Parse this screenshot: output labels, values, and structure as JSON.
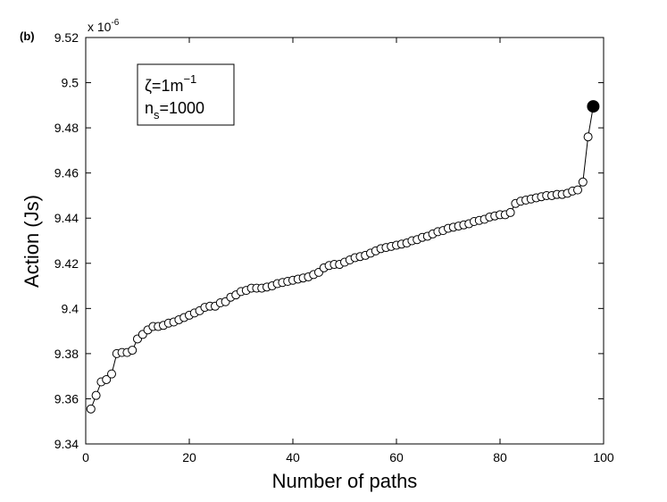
{
  "panel_label": "(b)",
  "chart_data": {
    "type": "line",
    "xlabel": "Number of paths",
    "ylabel": "Action (Js)",
    "y_multiplier": "x 10",
    "y_multiplier_exp": "-6",
    "xlim": [
      0,
      100
    ],
    "ylim": [
      9.34,
      9.52
    ],
    "x_ticks": [
      0,
      20,
      40,
      60,
      80,
      100
    ],
    "x_tick_labels": [
      "0",
      "20",
      "40",
      "60",
      "80",
      "100"
    ],
    "y_ticks": [
      9.34,
      9.36,
      9.38,
      9.4,
      9.42,
      9.44,
      9.46,
      9.48,
      9.5,
      9.52
    ],
    "y_tick_labels": [
      "9.34",
      "9.36",
      "9.38",
      "9.4",
      "9.42",
      "9.44",
      "9.46",
      "9.48",
      "9.5",
      "9.52"
    ],
    "grid": false,
    "annotation": {
      "line1": "ζ=1m",
      "line1_sup": "−1",
      "line2_main": "n",
      "line2_sub": "s",
      "line2_rest": "=1000"
    },
    "series": [
      {
        "x": [
          1,
          2,
          3,
          4,
          5,
          6,
          7,
          8,
          9,
          10,
          11,
          12,
          13,
          14,
          15,
          16,
          17,
          18,
          19,
          20,
          21,
          22,
          23,
          24,
          25,
          26,
          27,
          28,
          29,
          30,
          31,
          32,
          33,
          34,
          35,
          36,
          37,
          38,
          39,
          40,
          41,
          42,
          43,
          44,
          45,
          46,
          47,
          48,
          49,
          50,
          51,
          52,
          53,
          54,
          55,
          56,
          57,
          58,
          59,
          60,
          61,
          62,
          63,
          64,
          65,
          66,
          67,
          68,
          69,
          70,
          71,
          72,
          73,
          74,
          75,
          76,
          77,
          78,
          79,
          80,
          81,
          82,
          83,
          84,
          85,
          86,
          87,
          88,
          89,
          90,
          91,
          92,
          93,
          94,
          95,
          96,
          97,
          98
        ],
        "y": [
          9.3555,
          9.3615,
          9.3675,
          9.3685,
          9.371,
          9.38,
          9.3805,
          9.3805,
          9.3815,
          9.3865,
          9.3885,
          9.3905,
          9.392,
          9.392,
          9.3925,
          9.3935,
          9.394,
          9.395,
          9.396,
          9.397,
          9.398,
          9.399,
          9.4005,
          9.401,
          9.401,
          9.4025,
          9.403,
          9.405,
          9.406,
          9.4075,
          9.408,
          9.409,
          9.409,
          9.409,
          9.4095,
          9.41,
          9.411,
          9.4115,
          9.412,
          9.4125,
          9.413,
          9.4135,
          9.414,
          9.415,
          9.416,
          9.418,
          9.419,
          9.4195,
          9.4195,
          9.4205,
          9.4215,
          9.4225,
          9.423,
          9.4235,
          9.4245,
          9.4255,
          9.4265,
          9.427,
          9.4275,
          9.428,
          9.4285,
          9.429,
          9.43,
          9.4305,
          9.4315,
          9.432,
          9.433,
          9.434,
          9.4345,
          9.4355,
          9.436,
          9.4365,
          9.437,
          9.4375,
          9.4385,
          9.439,
          9.4395,
          9.4405,
          9.441,
          9.4415,
          9.4415,
          9.4425,
          9.4465,
          9.4475,
          9.448,
          9.4485,
          9.449,
          9.4495,
          9.45,
          9.45,
          9.4505,
          9.4505,
          9.451,
          9.452,
          9.4525,
          9.456,
          9.476,
          9.4895
        ],
        "highlighted_last_point": true
      }
    ]
  }
}
